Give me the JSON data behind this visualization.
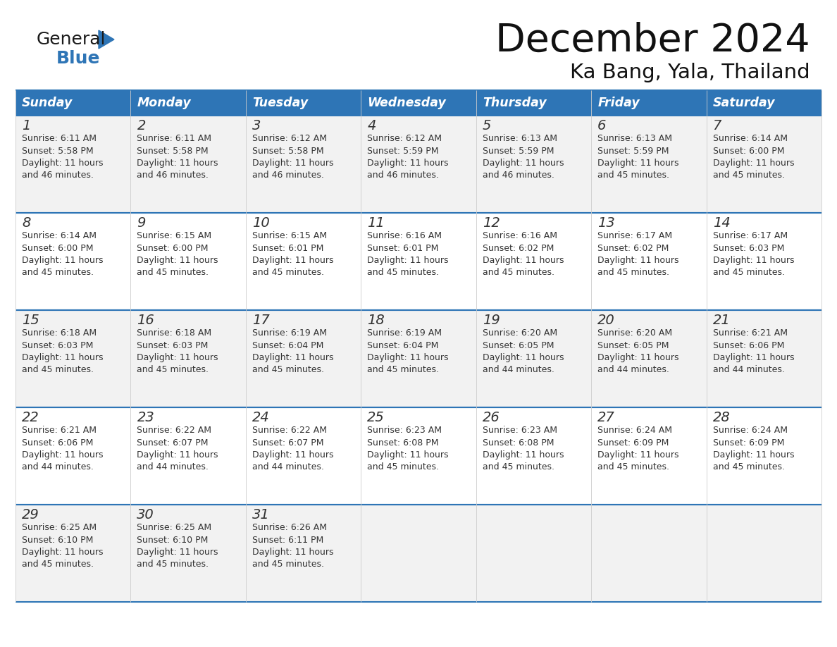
{
  "title": "December 2024",
  "subtitle": "Ka Bang, Yala, Thailand",
  "header_color": "#2E75B6",
  "header_text_color": "#FFFFFF",
  "day_names": [
    "Sunday",
    "Monday",
    "Tuesday",
    "Wednesday",
    "Thursday",
    "Friday",
    "Saturday"
  ],
  "background_color": "#FFFFFF",
  "cell_bg_even": "#F2F2F2",
  "cell_bg_odd": "#FFFFFF",
  "border_color": "#2E75B6",
  "text_color": "#333333",
  "logo_color_general": "#1a1a1a",
  "logo_color_blue": "#2E75B6",
  "calendar_data": [
    [
      {
        "day": 1,
        "sunrise": "6:11 AM",
        "sunset": "5:58 PM",
        "daylight_hours": 11,
        "daylight_minutes": 46
      },
      {
        "day": 2,
        "sunrise": "6:11 AM",
        "sunset": "5:58 PM",
        "daylight_hours": 11,
        "daylight_minutes": 46
      },
      {
        "day": 3,
        "sunrise": "6:12 AM",
        "sunset": "5:58 PM",
        "daylight_hours": 11,
        "daylight_minutes": 46
      },
      {
        "day": 4,
        "sunrise": "6:12 AM",
        "sunset": "5:59 PM",
        "daylight_hours": 11,
        "daylight_minutes": 46
      },
      {
        "day": 5,
        "sunrise": "6:13 AM",
        "sunset": "5:59 PM",
        "daylight_hours": 11,
        "daylight_minutes": 46
      },
      {
        "day": 6,
        "sunrise": "6:13 AM",
        "sunset": "5:59 PM",
        "daylight_hours": 11,
        "daylight_minutes": 45
      },
      {
        "day": 7,
        "sunrise": "6:14 AM",
        "sunset": "6:00 PM",
        "daylight_hours": 11,
        "daylight_minutes": 45
      }
    ],
    [
      {
        "day": 8,
        "sunrise": "6:14 AM",
        "sunset": "6:00 PM",
        "daylight_hours": 11,
        "daylight_minutes": 45
      },
      {
        "day": 9,
        "sunrise": "6:15 AM",
        "sunset": "6:00 PM",
        "daylight_hours": 11,
        "daylight_minutes": 45
      },
      {
        "day": 10,
        "sunrise": "6:15 AM",
        "sunset": "6:01 PM",
        "daylight_hours": 11,
        "daylight_minutes": 45
      },
      {
        "day": 11,
        "sunrise": "6:16 AM",
        "sunset": "6:01 PM",
        "daylight_hours": 11,
        "daylight_minutes": 45
      },
      {
        "day": 12,
        "sunrise": "6:16 AM",
        "sunset": "6:02 PM",
        "daylight_hours": 11,
        "daylight_minutes": 45
      },
      {
        "day": 13,
        "sunrise": "6:17 AM",
        "sunset": "6:02 PM",
        "daylight_hours": 11,
        "daylight_minutes": 45
      },
      {
        "day": 14,
        "sunrise": "6:17 AM",
        "sunset": "6:03 PM",
        "daylight_hours": 11,
        "daylight_minutes": 45
      }
    ],
    [
      {
        "day": 15,
        "sunrise": "6:18 AM",
        "sunset": "6:03 PM",
        "daylight_hours": 11,
        "daylight_minutes": 45
      },
      {
        "day": 16,
        "sunrise": "6:18 AM",
        "sunset": "6:03 PM",
        "daylight_hours": 11,
        "daylight_minutes": 45
      },
      {
        "day": 17,
        "sunrise": "6:19 AM",
        "sunset": "6:04 PM",
        "daylight_hours": 11,
        "daylight_minutes": 45
      },
      {
        "day": 18,
        "sunrise": "6:19 AM",
        "sunset": "6:04 PM",
        "daylight_hours": 11,
        "daylight_minutes": 45
      },
      {
        "day": 19,
        "sunrise": "6:20 AM",
        "sunset": "6:05 PM",
        "daylight_hours": 11,
        "daylight_minutes": 44
      },
      {
        "day": 20,
        "sunrise": "6:20 AM",
        "sunset": "6:05 PM",
        "daylight_hours": 11,
        "daylight_minutes": 44
      },
      {
        "day": 21,
        "sunrise": "6:21 AM",
        "sunset": "6:06 PM",
        "daylight_hours": 11,
        "daylight_minutes": 44
      }
    ],
    [
      {
        "day": 22,
        "sunrise": "6:21 AM",
        "sunset": "6:06 PM",
        "daylight_hours": 11,
        "daylight_minutes": 44
      },
      {
        "day": 23,
        "sunrise": "6:22 AM",
        "sunset": "6:07 PM",
        "daylight_hours": 11,
        "daylight_minutes": 44
      },
      {
        "day": 24,
        "sunrise": "6:22 AM",
        "sunset": "6:07 PM",
        "daylight_hours": 11,
        "daylight_minutes": 44
      },
      {
        "day": 25,
        "sunrise": "6:23 AM",
        "sunset": "6:08 PM",
        "daylight_hours": 11,
        "daylight_minutes": 45
      },
      {
        "day": 26,
        "sunrise": "6:23 AM",
        "sunset": "6:08 PM",
        "daylight_hours": 11,
        "daylight_minutes": 45
      },
      {
        "day": 27,
        "sunrise": "6:24 AM",
        "sunset": "6:09 PM",
        "daylight_hours": 11,
        "daylight_minutes": 45
      },
      {
        "day": 28,
        "sunrise": "6:24 AM",
        "sunset": "6:09 PM",
        "daylight_hours": 11,
        "daylight_minutes": 45
      }
    ],
    [
      {
        "day": 29,
        "sunrise": "6:25 AM",
        "sunset": "6:10 PM",
        "daylight_hours": 11,
        "daylight_minutes": 45
      },
      {
        "day": 30,
        "sunrise": "6:25 AM",
        "sunset": "6:10 PM",
        "daylight_hours": 11,
        "daylight_minutes": 45
      },
      {
        "day": 31,
        "sunrise": "6:26 AM",
        "sunset": "6:11 PM",
        "daylight_hours": 11,
        "daylight_minutes": 45
      },
      null,
      null,
      null,
      null
    ]
  ]
}
